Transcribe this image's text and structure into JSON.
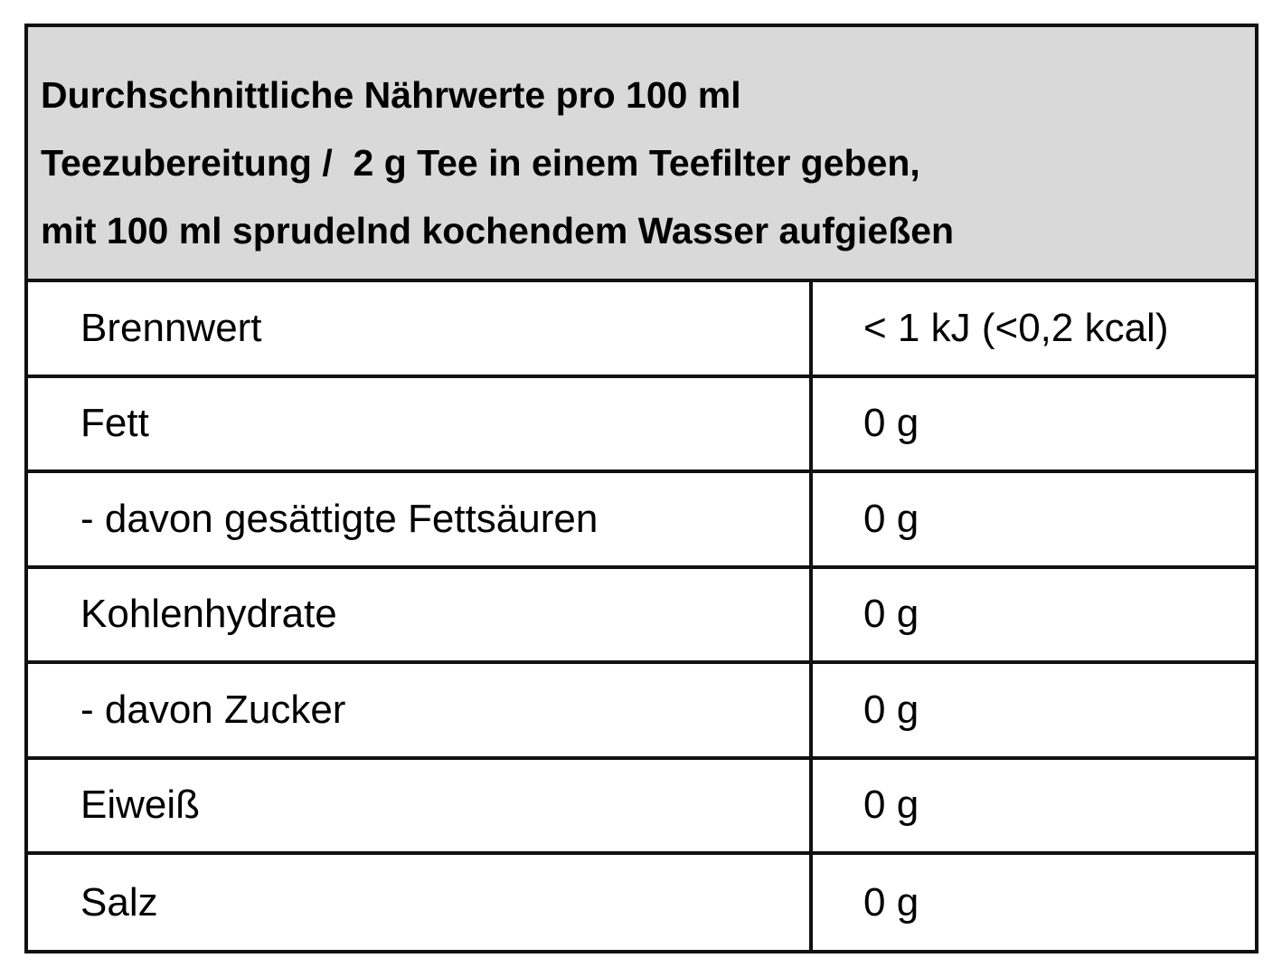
{
  "header": {
    "lines": [
      "Durchschnittliche Nährwerte pro 100 ml",
      "Teezubereitung /  2 g Tee in einem Teefilter geben,",
      "mit 100 ml sprudelnd kochendem Wasser aufgießen"
    ],
    "background_color": "#d9d9d9"
  },
  "rows": [
    {
      "label": "Brennwert",
      "value": "< 1 kJ (<0,2 kcal)"
    },
    {
      "label": "Fett",
      "value": "0 g"
    },
    {
      "label": "- davon gesättigte Fettsäuren",
      "value": "0 g"
    },
    {
      "label": "Kohlenhydrate",
      "value": "0 g"
    },
    {
      "label": "- davon Zucker",
      "value": "0 g"
    },
    {
      "label": "Eiweiß",
      "value": "0 g"
    },
    {
      "label": "Salz",
      "value": "0 g"
    }
  ]
}
